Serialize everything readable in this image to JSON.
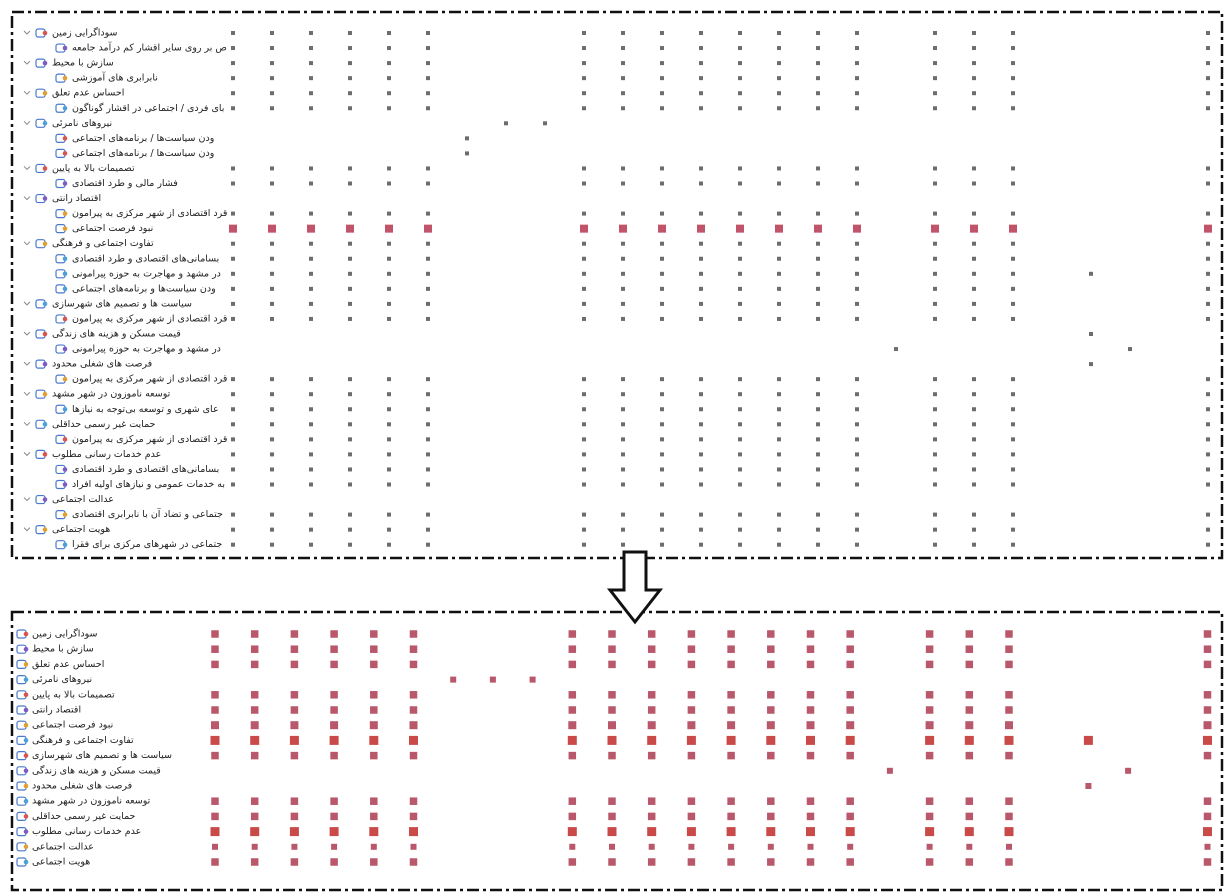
{
  "top": {
    "groups": [
      {
        "label": "سوداگرایی زمین",
        "weight": 1,
        "dots": [
          0,
          1,
          2,
          3,
          4,
          5,
          9,
          10,
          11,
          12,
          13,
          14,
          15,
          16,
          18,
          19,
          20,
          25
        ],
        "children": [
          {
            "label": "ص بر روی سایر اقشار کم درآمد جامعه",
            "weight": 1,
            "dots": [
              0,
              1,
              2,
              3,
              4,
              5,
              9,
              10,
              11,
              12,
              13,
              14,
              15,
              16,
              18,
              19,
              20,
              25
            ]
          }
        ]
      },
      {
        "label": "سازش با محیط",
        "weight": 1,
        "dots": [
          0,
          1,
          2,
          3,
          4,
          5,
          9,
          10,
          11,
          12,
          13,
          14,
          15,
          16,
          18,
          19,
          20,
          25
        ],
        "children": [
          {
            "label": "نابرابری های آموزشی",
            "weight": 1,
            "dots": [
              0,
              1,
              2,
              3,
              4,
              5,
              9,
              10,
              11,
              12,
              13,
              14,
              15,
              16,
              18,
              19,
              20,
              25
            ]
          }
        ]
      },
      {
        "label": "احساس عدم تعلق",
        "weight": 1,
        "dots": [
          0,
          1,
          2,
          3,
          4,
          5,
          9,
          10,
          11,
          12,
          13,
          14,
          15,
          16,
          18,
          19,
          20,
          25
        ],
        "children": [
          {
            "label": "بای فردی / اجتماعی در اقشار گوناگون",
            "weight": 1,
            "dots": [
              0,
              1,
              2,
              3,
              4,
              5,
              9,
              10,
              11,
              12,
              13,
              14,
              15,
              16,
              18,
              19,
              20,
              25
            ]
          }
        ]
      },
      {
        "label": "نیروهای نامرئی",
        "weight": 1,
        "dots": [
          7,
          8
        ],
        "children": [
          {
            "label": "ودن سیاست‌ها / برنامه‌های اجتماعی",
            "weight": 1,
            "dots": [
              6
            ]
          },
          {
            "label": "ودن سیاست‌ها / برنامه‌های اجتماعی",
            "weight": 1,
            "dots": [
              6
            ]
          }
        ]
      },
      {
        "label": "تصمیمات بالا به پایین",
        "weight": 1,
        "dots": [
          0,
          1,
          2,
          3,
          4,
          5,
          9,
          10,
          11,
          12,
          13,
          14,
          15,
          16,
          18,
          19,
          20,
          25
        ],
        "children": [
          {
            "label": "فشار مالی و طرد اقتصادی",
            "weight": 1,
            "dots": [
              0,
              1,
              2,
              3,
              4,
              5,
              9,
              10,
              11,
              12,
              13,
              14,
              15,
              16,
              18,
              19,
              20,
              25
            ]
          }
        ]
      },
      {
        "label": "اقتصاد رانتی",
        "weight": 1,
        "dots": [],
        "children": [
          {
            "label": "قرد اقتصادی از شهر مرکزی به پیرامون",
            "weight": 1,
            "dots": [
              0,
              1,
              2,
              3,
              4,
              5,
              9,
              10,
              11,
              12,
              13,
              14,
              15,
              16,
              18,
              19,
              20,
              25
            ]
          },
          {
            "label": "نبود فرصت اجتماعی",
            "weight": 2,
            "dots": [
              0,
              1,
              2,
              3,
              4,
              5,
              9,
              10,
              11,
              12,
              13,
              14,
              15,
              16,
              18,
              19,
              20,
              25
            ]
          }
        ]
      },
      {
        "label": "تفاوت اجتماعی و فرهنگی",
        "weight": 1,
        "dots": [
          0,
          1,
          2,
          3,
          4,
          5,
          9,
          10,
          11,
          12,
          13,
          14,
          15,
          16,
          18,
          19,
          20,
          25
        ],
        "children": [
          {
            "label": "بسامانی‌های اقتصادی و طرد اقتصادی",
            "weight": 1,
            "dots": [
              0,
              1,
              2,
              3,
              4,
              5,
              9,
              10,
              11,
              12,
              13,
              14,
              15,
              16,
              18,
              19,
              20,
              25
            ]
          },
          {
            "label": "در مشهد و مهاجرت به حوزه پیرامونی",
            "weight": 1,
            "dots": [
              0,
              1,
              2,
              3,
              4,
              5,
              9,
              10,
              11,
              12,
              13,
              14,
              15,
              16,
              18,
              19,
              20,
              22,
              25
            ]
          },
          {
            "label": "ودن سیاست‌ها و برنامه‌های اجتماعی",
            "weight": 1,
            "dots": [
              0,
              1,
              2,
              3,
              4,
              5,
              9,
              10,
              11,
              12,
              13,
              14,
              15,
              16,
              18,
              19,
              20,
              25
            ]
          }
        ]
      },
      {
        "label": "سیاست ها و تصمیم های شهرسازی",
        "weight": 1,
        "dots": [
          0,
          1,
          2,
          3,
          4,
          5,
          9,
          10,
          11,
          12,
          13,
          14,
          15,
          16,
          18,
          19,
          20,
          25
        ],
        "children": [
          {
            "label": "قرد اقتصادی از شهر مرکزی به پیرامون",
            "weight": 1,
            "dots": [
              0,
              1,
              2,
              3,
              4,
              5,
              9,
              10,
              11,
              12,
              13,
              14,
              15,
              16,
              18,
              19,
              20,
              25
            ]
          }
        ]
      },
      {
        "label": "قیمت مسکن و هزینه های زندگی",
        "weight": 1,
        "dots": [
          22
        ],
        "children": [
          {
            "label": "در مشهد و مهاجرت به حوزه پیرامونی",
            "weight": 1,
            "dots": [
              17,
              23
            ]
          }
        ]
      },
      {
        "label": "فرصت های شغلی محدود",
        "weight": 1,
        "dots": [
          22
        ],
        "children": [
          {
            "label": "قرد اقتصادی از شهر مرکزی به پیرامون",
            "weight": 1,
            "dots": [
              0,
              1,
              2,
              3,
              4,
              5,
              9,
              10,
              11,
              12,
              13,
              14,
              15,
              16,
              18,
              19,
              20,
              25
            ]
          }
        ]
      },
      {
        "label": "توسعه ناموزون در شهر مشهد",
        "weight": 1,
        "dots": [
          0,
          1,
          2,
          3,
          4,
          5,
          9,
          10,
          11,
          12,
          13,
          14,
          15,
          16,
          18,
          19,
          20,
          25
        ],
        "children": [
          {
            "label": "عای شهری و توسعه بی‌توجه به نیازها",
            "weight": 1,
            "dots": [
              0,
              1,
              2,
              3,
              4,
              5,
              9,
              10,
              11,
              12,
              13,
              14,
              15,
              16,
              18,
              19,
              20,
              25
            ]
          }
        ]
      },
      {
        "label": "حمایت غیر رسمی حداقلی",
        "weight": 1,
        "dots": [
          0,
          1,
          2,
          3,
          4,
          5,
          9,
          10,
          11,
          12,
          13,
          14,
          15,
          16,
          18,
          19,
          20,
          25
        ],
        "children": [
          {
            "label": "قرد اقتصادی از شهر مرکزی به پیرامون",
            "weight": 1,
            "dots": [
              0,
              1,
              2,
              3,
              4,
              5,
              9,
              10,
              11,
              12,
              13,
              14,
              15,
              16,
              18,
              19,
              20,
              25
            ]
          }
        ]
      },
      {
        "label": "عدم خدمات رسانی مطلوب",
        "weight": 1,
        "dots": [
          0,
          1,
          2,
          3,
          4,
          5,
          9,
          10,
          11,
          12,
          13,
          14,
          15,
          16,
          18,
          19,
          20,
          25
        ],
        "children": [
          {
            "label": "بسامانی‌های اقتصادی و طرد اقتصادی",
            "weight": 1,
            "dots": [
              0,
              1,
              2,
              3,
              4,
              5,
              9,
              10,
              11,
              12,
              13,
              14,
              15,
              16,
              18,
              19,
              20,
              25
            ]
          },
          {
            "label": "به خدمات عمومی و نیازهای اولیه افراد",
            "weight": 1,
            "dots": [
              0,
              1,
              2,
              3,
              4,
              5,
              9,
              10,
              11,
              12,
              13,
              14,
              15,
              16,
              18,
              19,
              20,
              25
            ]
          }
        ]
      },
      {
        "label": "عدالت اجتماعی",
        "weight": 1,
        "dots": [],
        "children": [
          {
            "label": "جتماعی و تضاد آن با نابرابری اقتصادی",
            "weight": 1,
            "dots": [
              0,
              1,
              2,
              3,
              4,
              5,
              9,
              10,
              11,
              12,
              13,
              14,
              15,
              16,
              18,
              19,
              20,
              25
            ]
          }
        ]
      },
      {
        "label": "هویت اجتماعی",
        "weight": 1,
        "dots": [
          0,
          1,
          2,
          3,
          4,
          5,
          9,
          10,
          11,
          12,
          13,
          14,
          15,
          16,
          18,
          19,
          20,
          25
        ],
        "children": [
          {
            "label": "جتماعی در شهرهای مرکزی برای فقرا",
            "weight": 1,
            "dots": [
              0,
              1,
              2,
              3,
              4,
              5,
              9,
              10,
              11,
              12,
              13,
              14,
              15,
              16,
              18,
              19,
              20,
              25
            ]
          }
        ]
      }
    ]
  },
  "bottom": {
    "rows": [
      {
        "label": "سوداگرایی زمین",
        "weight": 1.5,
        "dots": [
          0,
          1,
          2,
          3,
          4,
          5,
          9,
          10,
          11,
          12,
          13,
          14,
          15,
          16,
          18,
          19,
          20,
          25
        ]
      },
      {
        "label": "سازش با محیط",
        "weight": 1.5,
        "dots": [
          0,
          1,
          2,
          3,
          4,
          5,
          9,
          10,
          11,
          12,
          13,
          14,
          15,
          16,
          18,
          19,
          20,
          25
        ]
      },
      {
        "label": "احساس عدم تعلق",
        "weight": 1.5,
        "dots": [
          0,
          1,
          2,
          3,
          4,
          5,
          9,
          10,
          11,
          12,
          13,
          14,
          15,
          16,
          18,
          19,
          20,
          25
        ]
      },
      {
        "label": "نیروهای نامرئی",
        "weight": 1.2,
        "dots": [
          6,
          7,
          8
        ]
      },
      {
        "label": "تصمیمات بالا به پایین",
        "weight": 1.5,
        "dots": [
          0,
          1,
          2,
          3,
          4,
          5,
          9,
          10,
          11,
          12,
          13,
          14,
          15,
          16,
          18,
          19,
          20,
          25
        ]
      },
      {
        "label": "اقتصاد رانتی",
        "weight": 1.5,
        "dots": [
          0,
          1,
          2,
          3,
          4,
          5,
          9,
          10,
          11,
          12,
          13,
          14,
          15,
          16,
          18,
          19,
          20,
          25
        ]
      },
      {
        "label": "نبود فرصت اجتماعی",
        "weight": 1.6,
        "dots": [
          0,
          1,
          2,
          3,
          4,
          5,
          9,
          10,
          11,
          12,
          13,
          14,
          15,
          16,
          18,
          19,
          20,
          25
        ]
      },
      {
        "label": "تفاوت اجتماعی و فرهنگی",
        "weight": 1.8,
        "dots": [
          0,
          1,
          2,
          3,
          4,
          5,
          9,
          10,
          11,
          12,
          13,
          14,
          15,
          16,
          18,
          19,
          20,
          22,
          25
        ]
      },
      {
        "label": "سیاست ها و تصمیم های شهرسازی",
        "weight": 1.5,
        "dots": [
          0,
          1,
          2,
          3,
          4,
          5,
          9,
          10,
          11,
          12,
          13,
          14,
          15,
          16,
          18,
          19,
          20,
          25
        ]
      },
      {
        "label": "قیمت مسکن و هزینه های زندگی",
        "weight": 1.2,
        "dots": [
          17,
          23
        ]
      },
      {
        "label": "فرصت های شغلی محدود",
        "weight": 1.2,
        "dots": [
          22
        ]
      },
      {
        "label": "توسعه ناموزون در شهر مشهد",
        "weight": 1.5,
        "dots": [
          0,
          1,
          2,
          3,
          4,
          5,
          9,
          10,
          11,
          12,
          13,
          14,
          15,
          16,
          18,
          19,
          20,
          25
        ]
      },
      {
        "label": "حمایت غیر رسمی حداقلی",
        "weight": 1.5,
        "dots": [
          0,
          1,
          2,
          3,
          4,
          5,
          9,
          10,
          11,
          12,
          13,
          14,
          15,
          16,
          18,
          19,
          20,
          25
        ]
      },
      {
        "label": "عدم خدمات رسانی مطلوب",
        "weight": 1.8,
        "dots": [
          0,
          1,
          2,
          3,
          4,
          5,
          9,
          10,
          11,
          12,
          13,
          14,
          15,
          16,
          18,
          19,
          20,
          25
        ]
      },
      {
        "label": "عدالت اجتماعی",
        "weight": 1.2,
        "dots": [
          0,
          1,
          2,
          3,
          4,
          5,
          9,
          10,
          11,
          12,
          13,
          14,
          15,
          16,
          18,
          19,
          20,
          25
        ]
      },
      {
        "label": "هویت اجتماعی",
        "weight": 1.5,
        "dots": [
          0,
          1,
          2,
          3,
          4,
          5,
          9,
          10,
          11,
          12,
          13,
          14,
          15,
          16,
          18,
          19,
          20,
          25
        ]
      }
    ]
  }
}
